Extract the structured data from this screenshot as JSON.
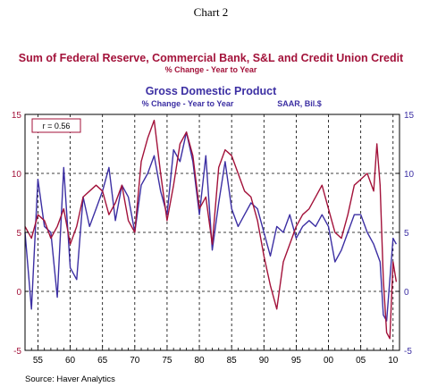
{
  "chart_data": {
    "type": "line",
    "caption": "Chart 2",
    "title1": "Sum of Federal Reserve, Commercial Bank, S&L and Credit Union Credit",
    "subtitle1": "% Change - Year to Year",
    "title2": "Gross Domestic Product",
    "subtitle2": "% Change - Year to Year",
    "subtitle2_right": "SAAR, Bil.$",
    "annotation": "r = 0.56",
    "source": "Source: Haver Analytics",
    "xlim": [
      1953,
      2011
    ],
    "ylim": [
      -5,
      15
    ],
    "yticks": [
      -5,
      0,
      5,
      10,
      15
    ],
    "yticks_right": [
      -5,
      0,
      5,
      10,
      15
    ],
    "xticks": [
      {
        "label": "55",
        "x": 1955
      },
      {
        "label": "60",
        "x": 1960
      },
      {
        "label": "65",
        "x": 1965
      },
      {
        "label": "70",
        "x": 1970
      },
      {
        "label": "75",
        "x": 1975
      },
      {
        "label": "80",
        "x": 1980
      },
      {
        "label": "85",
        "x": 1985
      },
      {
        "label": "90",
        "x": 1990
      },
      {
        "label": "95",
        "x": 1995
      },
      {
        "label": "00",
        "x": 2000
      },
      {
        "label": "05",
        "x": 2005
      },
      {
        "label": "10",
        "x": 2010
      }
    ],
    "grid": true,
    "colors": {
      "credit": "#a3123a",
      "gdp": "#3c2fa3"
    },
    "series": [
      {
        "key": "credit",
        "x": [
          1953,
          1954,
          1955,
          1956,
          1957,
          1958,
          1959,
          1960,
          1961,
          1962,
          1963,
          1964,
          1965,
          1966,
          1967,
          1968,
          1969,
          1970,
          1971,
          1972,
          1973,
          1974,
          1975,
          1976,
          1977,
          1978,
          1979,
          1980,
          1981,
          1982,
          1983,
          1984,
          1985,
          1986,
          1987,
          1988,
          1989,
          1990,
          1991,
          1992,
          1993,
          1994,
          1995,
          1996,
          1997,
          1998,
          1999,
          2000,
          2001,
          2002,
          2003,
          2004,
          2005,
          2006,
          2007,
          2007.5,
          2008,
          2008.5,
          2009,
          2009.5,
          2010,
          2010.5
        ],
        "y": [
          5.5,
          4.5,
          6.5,
          6.0,
          4.5,
          5.5,
          7.0,
          4.0,
          5.5,
          8.0,
          8.5,
          9.0,
          8.5,
          6.5,
          7.5,
          9.0,
          6.0,
          5.0,
          11.0,
          13.0,
          14.5,
          10.0,
          6.0,
          9.0,
          12.5,
          13.5,
          11.5,
          7.0,
          8.0,
          4.0,
          10.5,
          12.0,
          11.5,
          10.0,
          8.5,
          8.0,
          6.0,
          3.0,
          0.5,
          -1.5,
          2.5,
          4.0,
          5.5,
          6.5,
          7.0,
          8.0,
          9.0,
          7.0,
          5.0,
          4.5,
          6.5,
          9.0,
          9.5,
          10.0,
          8.5,
          12.5,
          9.0,
          1.0,
          -3.5,
          -4.0,
          2.5,
          0.8
        ]
      },
      {
        "key": "gdp",
        "x": [
          1953,
          1954,
          1955,
          1956,
          1957,
          1958,
          1959,
          1960,
          1961,
          1962,
          1963,
          1964,
          1965,
          1966,
          1967,
          1968,
          1969,
          1970,
          1971,
          1972,
          1973,
          1974,
          1975,
          1976,
          1977,
          1978,
          1979,
          1980,
          1981,
          1982,
          1983,
          1984,
          1985,
          1986,
          1987,
          1988,
          1989,
          1990,
          1991,
          1992,
          1993,
          1994,
          1995,
          1996,
          1997,
          1998,
          1999,
          2000,
          2001,
          2002,
          2003,
          2004,
          2005,
          2006,
          2007,
          2008,
          2008.5,
          2009,
          2009.5,
          2010,
          2010.5
        ],
        "y": [
          5.0,
          -1.5,
          9.5,
          5.5,
          5.0,
          -0.5,
          10.5,
          2.0,
          1.0,
          8.0,
          5.5,
          7.0,
          8.5,
          10.5,
          6.0,
          9.0,
          8.0,
          5.0,
          9.0,
          10.0,
          11.5,
          8.5,
          6.5,
          12.0,
          11.0,
          13.5,
          11.0,
          6.5,
          11.5,
          3.5,
          7.5,
          11.0,
          7.0,
          5.5,
          6.5,
          7.5,
          7.0,
          5.0,
          3.0,
          5.5,
          5.0,
          6.5,
          4.5,
          5.5,
          6.0,
          5.5,
          6.5,
          5.5,
          2.5,
          3.5,
          5.0,
          6.5,
          6.5,
          5.0,
          4.0,
          2.5,
          -2.0,
          -2.5,
          1.0,
          4.5,
          4.0
        ]
      }
    ]
  }
}
